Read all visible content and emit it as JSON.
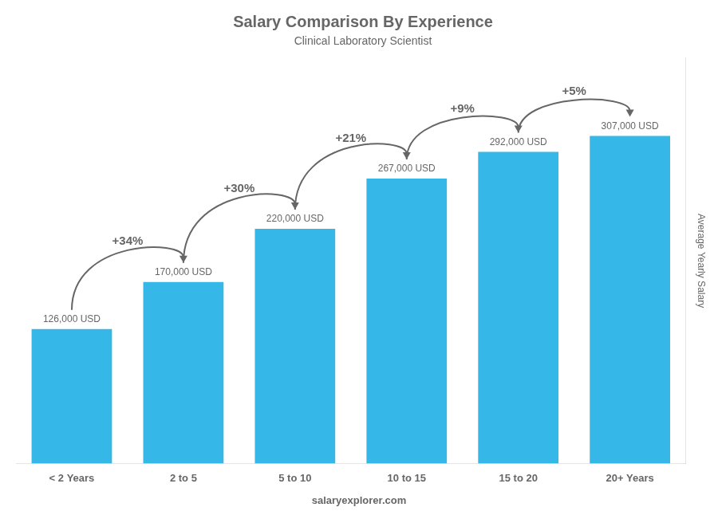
{
  "chart_data": {
    "type": "bar",
    "title": "Salary Comparison By Experience",
    "subtitle": "Clinical Laboratory Scientist",
    "ylabel": "Average Yearly Salary",
    "categories": [
      "< 2 Years",
      "2 to 5",
      "5 to 10",
      "10 to 15",
      "15 to 20",
      "20+ Years"
    ],
    "values": [
      126000,
      170000,
      220000,
      267000,
      292000,
      307000
    ],
    "value_labels": [
      "126,000 USD",
      "170,000 USD",
      "220,000 USD",
      "267,000 USD",
      "292,000 USD",
      "307,000 USD"
    ],
    "data_labels": true,
    "annotations": [
      "+34%",
      "+30%",
      "+21%",
      "+9%",
      "+5%"
    ],
    "watermark": "salaryexplorer.com",
    "color": "#35b8e8",
    "ylim": [
      0,
      380000
    ],
    "grid": false,
    "tick_labels": "x"
  }
}
